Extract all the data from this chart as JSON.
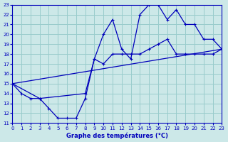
{
  "xlabel": "Graphe des températures (°C)",
  "bg_color": "#cce8e8",
  "line_color": "#0000bb",
  "grid_color": "#99cccc",
  "xlim": [
    0,
    23
  ],
  "ylim": [
    11,
    23
  ],
  "xticks": [
    0,
    1,
    2,
    3,
    4,
    5,
    6,
    7,
    8,
    9,
    10,
    11,
    12,
    13,
    14,
    15,
    16,
    17,
    18,
    19,
    20,
    21,
    22,
    23
  ],
  "yticks": [
    11,
    12,
    13,
    14,
    15,
    16,
    17,
    18,
    19,
    20,
    21,
    22,
    23
  ],
  "series1_x": [
    0,
    1,
    2,
    3,
    4,
    5,
    6,
    7,
    8,
    9,
    10,
    11,
    12,
    13,
    14,
    15,
    16,
    17,
    18,
    19,
    20,
    21,
    22,
    23
  ],
  "series1_y": [
    15,
    14,
    13.5,
    13.5,
    12.5,
    11.5,
    11.5,
    11.5,
    13.5,
    17.5,
    20.0,
    21.5,
    18.5,
    17.5,
    22.0,
    23.0,
    23.0,
    21.5,
    22.5,
    21.0,
    21.0,
    19.5,
    19.5,
    18.5
  ],
  "series2_x": [
    0,
    3,
    8,
    9,
    10,
    11,
    12,
    13,
    14,
    15,
    16,
    17,
    18,
    19,
    20,
    21,
    22,
    23
  ],
  "series2_y": [
    15,
    13.5,
    14.0,
    17.5,
    17.0,
    18.0,
    18.0,
    18.0,
    18.0,
    18.5,
    19.0,
    19.5,
    18.0,
    18.0,
    18.0,
    18.0,
    18.0,
    18.5
  ],
  "series3_x": [
    0,
    23
  ],
  "series3_y": [
    15,
    18.5
  ]
}
